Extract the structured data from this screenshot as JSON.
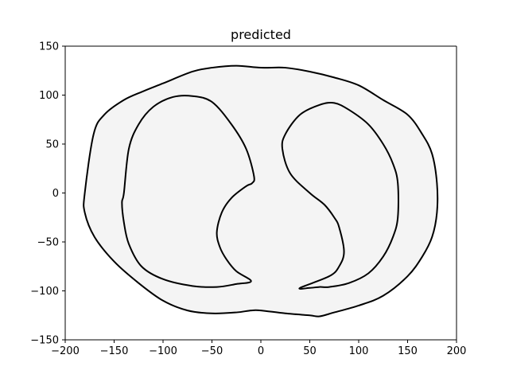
{
  "chart_data": {
    "type": "line",
    "title": "predicted",
    "xlabel": "",
    "ylabel": "",
    "xlim": [
      -200,
      200
    ],
    "ylim": [
      -150,
      150
    ],
    "xticks": [
      -200,
      -150,
      -100,
      -50,
      0,
      50,
      100,
      150,
      200
    ],
    "yticks": [
      -150,
      -100,
      -50,
      0,
      50,
      100,
      150
    ],
    "xtick_labels": [
      "−200",
      "−150",
      "−100",
      "−50",
      "0",
      "50",
      "100",
      "150",
      "200"
    ],
    "ytick_labels": [
      "−150",
      "−100",
      "−50",
      "0",
      "50",
      "100",
      "150"
    ],
    "grid": false,
    "fill_color": "#f4f4f4",
    "line_color": "#000000",
    "series": [
      {
        "role": "outer",
        "x": [
          -180,
          -171,
          -160,
          -140,
          -120,
          -100,
          -70,
          -50,
          -25,
          0,
          25,
          50,
          75,
          100,
          125,
          150,
          165,
          175,
          180,
          180,
          175,
          165,
          150,
          125,
          100,
          75,
          60,
          50,
          25,
          0,
          -10,
          -25,
          -50,
          -75,
          -100,
          -125,
          -150,
          -170,
          -180,
          -180
        ],
        "y": [
          0,
          60,
          80,
          95,
          104,
          112,
          124,
          128,
          130,
          128,
          128,
          124,
          118,
          110,
          95,
          80,
          60,
          40,
          10,
          -20,
          -45,
          -65,
          -85,
          -105,
          -115,
          -122,
          -126,
          -125,
          -123,
          -120,
          -120,
          -122,
          -123,
          -120,
          -110,
          -92,
          -70,
          -45,
          -20,
          0
        ]
      },
      {
        "role": "left-lung",
        "x": [
          -140,
          -135,
          -125,
          -110,
          -90,
          -70,
          -50,
          -30,
          -15,
          -7,
          -9,
          -15,
          -30,
          -40,
          -45,
          -42,
          -35,
          -25,
          -10,
          -25,
          -45,
          -70,
          -100,
          -122,
          -135,
          -140,
          -142,
          -140
        ],
        "y": [
          0,
          45,
          70,
          88,
          98,
          99,
          93,
          70,
          45,
          17,
          10,
          7,
          -5,
          -20,
          -40,
          -55,
          -68,
          -80,
          -90,
          -93,
          -96,
          -95,
          -88,
          -75,
          -52,
          -30,
          -10,
          0
        ]
      },
      {
        "role": "right-lung",
        "x": [
          40,
          70,
          80,
          85,
          80,
          75,
          65,
          50,
          30,
          22,
          25,
          40,
          60,
          75,
          90,
          110,
          125,
          135,
          140,
          140,
          135,
          125,
          110,
          90,
          70,
          60,
          50,
          40
        ],
        "y": [
          -97,
          -85,
          -75,
          -60,
          -35,
          -25,
          -12,
          0,
          20,
          45,
          60,
          80,
          90,
          92,
          85,
          70,
          50,
          30,
          10,
          -25,
          -45,
          -65,
          -82,
          -92,
          -96,
          -96,
          -97,
          -97
        ]
      }
    ]
  }
}
